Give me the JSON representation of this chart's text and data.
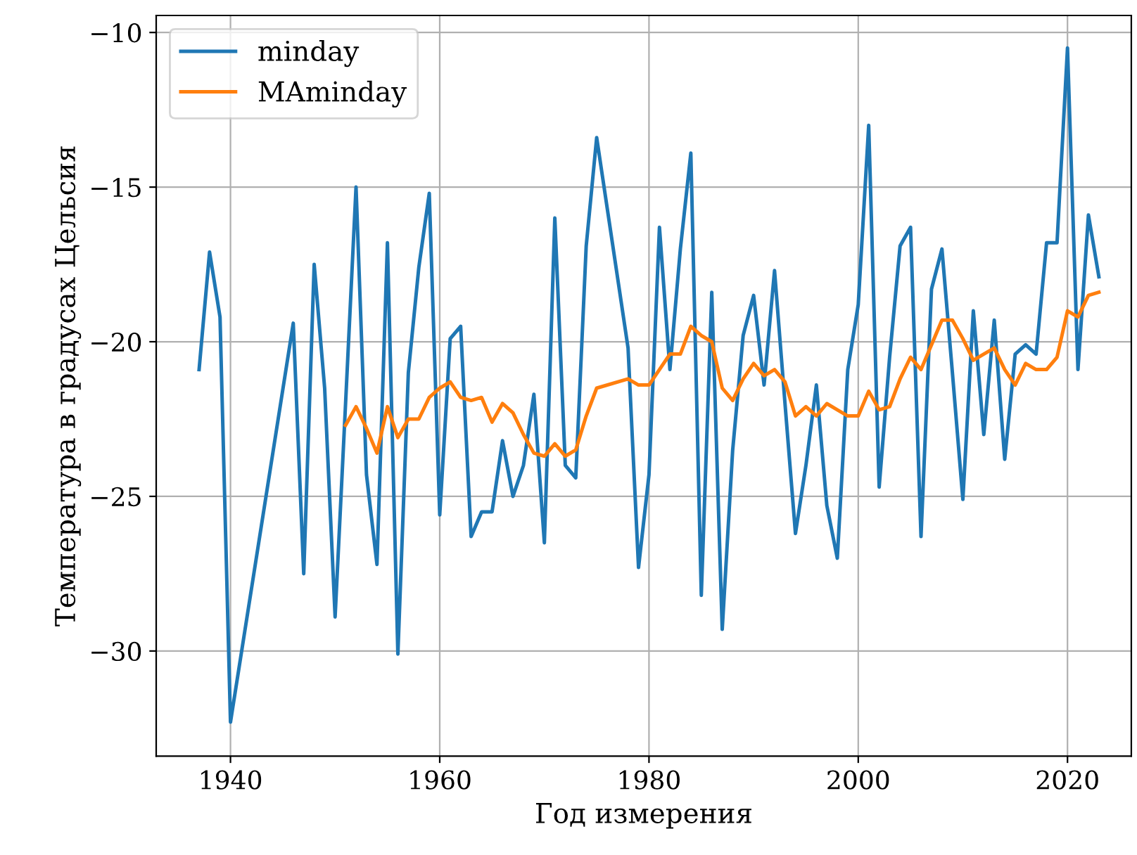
{
  "chart_data": {
    "type": "line",
    "xlabel": "Год измерения",
    "ylabel": "Температура в градусах Цельсия",
    "series": [
      {
        "name": "minday",
        "color": "#1f77b4",
        "x": [
          1937,
          1938,
          1939,
          1940,
          1946,
          1947,
          1948,
          1949,
          1950,
          1951,
          1952,
          1953,
          1954,
          1955,
          1956,
          1957,
          1958,
          1959,
          1960,
          1961,
          1962,
          1963,
          1964,
          1965,
          1966,
          1967,
          1968,
          1969,
          1970,
          1971,
          1972,
          1973,
          1974,
          1975,
          1978,
          1979,
          1980,
          1981,
          1982,
          1983,
          1984,
          1985,
          1986,
          1987,
          1988,
          1989,
          1990,
          1991,
          1992,
          1993,
          1994,
          1995,
          1996,
          1997,
          1998,
          1999,
          2000,
          2001,
          2002,
          2003,
          2004,
          2005,
          2006,
          2007,
          2008,
          2009,
          2010,
          2011,
          2012,
          2013,
          2014,
          2015,
          2016,
          2017,
          2018,
          2019,
          2020,
          2021,
          2022,
          2023
        ],
        "values": [
          -20.9,
          -17.1,
          -19.2,
          -32.3,
          -19.4,
          -27.5,
          -17.5,
          -21.5,
          -28.9,
          -22.0,
          -15.0,
          -24.3,
          -27.2,
          -16.8,
          -30.1,
          -21.0,
          -17.6,
          -15.2,
          -25.6,
          -19.9,
          -19.5,
          -26.3,
          -25.5,
          -25.5,
          -23.2,
          -25.0,
          -24.0,
          -21.7,
          -26.5,
          -16.0,
          -24.0,
          -24.4,
          -16.9,
          -13.4,
          -20.2,
          -27.3,
          -24.3,
          -16.3,
          -20.9,
          -17.0,
          -13.9,
          -28.2,
          -18.4,
          -29.3,
          -23.5,
          -19.8,
          -18.5,
          -21.4,
          -17.7,
          -22.0,
          -26.2,
          -24.0,
          -21.4,
          -25.3,
          -27.0,
          -20.9,
          -18.8,
          -13.0,
          -24.7,
          -20.5,
          -16.9,
          -16.3,
          -26.3,
          -18.3,
          -17.0,
          -21.0,
          -25.1,
          -19.0,
          -23.0,
          -19.3,
          -23.8,
          -20.4,
          -20.1,
          -20.4,
          -16.8,
          -16.8,
          -10.5,
          -20.9,
          -15.9,
          -17.9
        ]
      },
      {
        "name": "MAminday",
        "color": "#ff7f0e",
        "x": [
          1951,
          1952,
          1953,
          1954,
          1955,
          1956,
          1957,
          1958,
          1959,
          1960,
          1961,
          1962,
          1963,
          1964,
          1965,
          1966,
          1967,
          1968,
          1969,
          1970,
          1971,
          1972,
          1973,
          1974,
          1975,
          1978,
          1979,
          1980,
          1981,
          1982,
          1983,
          1984,
          1985,
          1986,
          1987,
          1988,
          1989,
          1990,
          1991,
          1992,
          1993,
          1994,
          1995,
          1996,
          1997,
          1998,
          1999,
          2000,
          2001,
          2002,
          2003,
          2004,
          2005,
          2006,
          2007,
          2008,
          2009,
          2010,
          2011,
          2012,
          2013,
          2014,
          2015,
          2016,
          2017,
          2018,
          2019,
          2020,
          2021,
          2022,
          2023
        ],
        "values": [
          -22.7,
          -22.1,
          -22.8,
          -23.6,
          -22.1,
          -23.1,
          -22.5,
          -22.5,
          -21.8,
          -21.5,
          -21.3,
          -21.8,
          -21.9,
          -21.8,
          -22.6,
          -22.0,
          -22.3,
          -23.0,
          -23.6,
          -23.7,
          -23.3,
          -23.7,
          -23.5,
          -22.4,
          -21.5,
          -21.2,
          -21.4,
          -21.4,
          -20.9,
          -20.4,
          -20.4,
          -19.5,
          -19.8,
          -20.0,
          -21.5,
          -21.9,
          -21.2,
          -20.7,
          -21.1,
          -20.9,
          -21.3,
          -22.4,
          -22.1,
          -22.4,
          -22.0,
          -22.2,
          -22.4,
          -22.4,
          -21.6,
          -22.2,
          -22.1,
          -21.2,
          -20.5,
          -20.9,
          -20.1,
          -19.3,
          -19.3,
          -19.9,
          -20.6,
          -20.4,
          -20.2,
          -20.9,
          -21.4,
          -20.7,
          -20.9,
          -20.9,
          -20.5,
          -19.0,
          -19.2,
          -18.5,
          -18.4
        ]
      }
    ],
    "xlim": [
      1932.9,
      2026.1
    ],
    "xticks": [
      1940,
      1960,
      1980,
      2000,
      2020
    ],
    "ylim": [
      -33.4,
      -9.45
    ],
    "yticks": [
      {
        "value": -30,
        "label": "−30"
      },
      {
        "value": -25,
        "label": "−25"
      },
      {
        "value": -20,
        "label": "−20"
      },
      {
        "value": -15,
        "label": "−15"
      },
      {
        "value": -10,
        "label": "−10"
      }
    ],
    "grid": true,
    "legend": "top left",
    "marker": "none",
    "line_style": "solid"
  }
}
